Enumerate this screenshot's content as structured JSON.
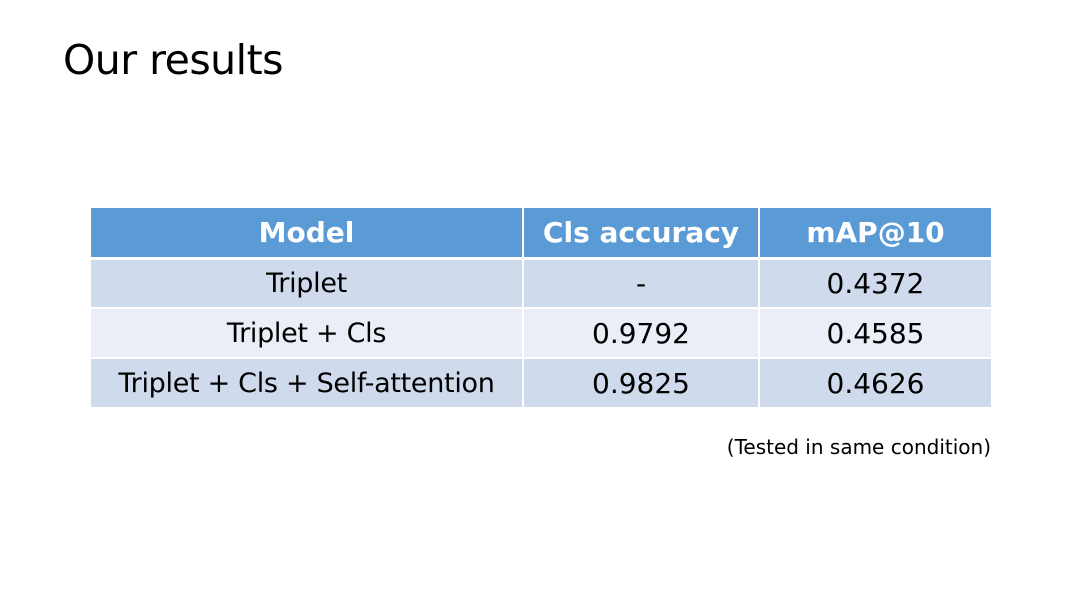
{
  "slide": {
    "title": "Our results",
    "note": "(Tested in same condition)"
  },
  "table": {
    "headers": [
      "Model",
      "Cls accuracy",
      "mAP@10"
    ],
    "rows": [
      [
        "Triplet",
        "-",
        "0.4372"
      ],
      [
        "Triplet + Cls",
        "0.9792",
        "0.4585"
      ],
      [
        "Triplet + Cls + Self-attention",
        "0.9825",
        "0.4626"
      ]
    ]
  },
  "colors": {
    "header_bg": "#5b9bd5",
    "row_band_dark": "#cfdbec",
    "row_band_light": "#e9eef7",
    "header_text": "#ffffff"
  }
}
